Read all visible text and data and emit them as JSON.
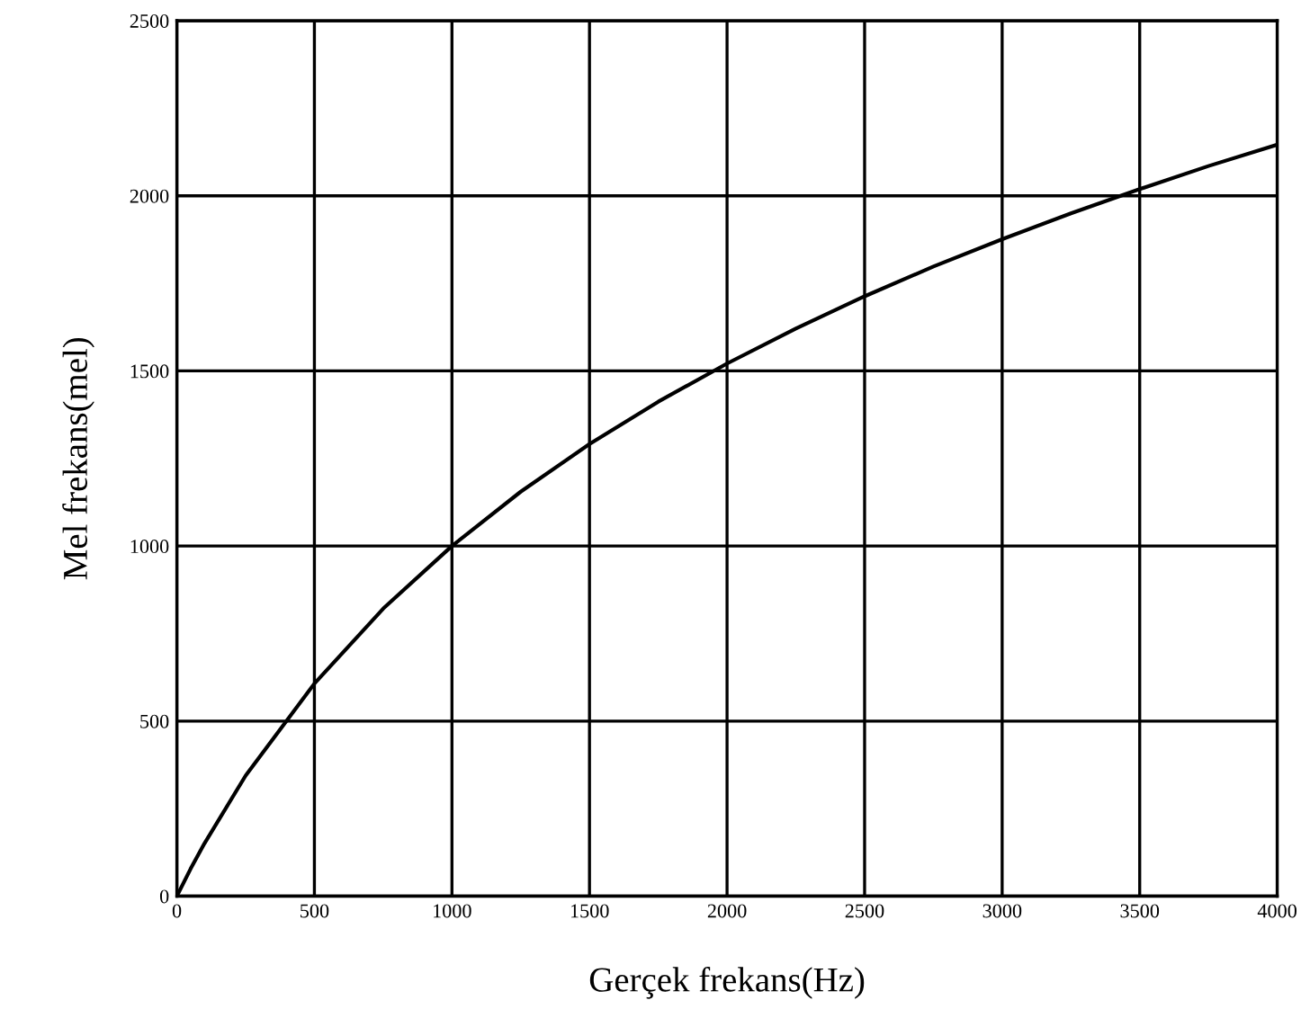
{
  "chart_data": {
    "type": "line",
    "xlabel": "Gerçek frekans(Hz)",
    "ylabel": "Mel frekans(mel)",
    "x": [
      0,
      50,
      100,
      250,
      500,
      750,
      1000,
      1250,
      1500,
      1750,
      2000,
      2250,
      2500,
      2750,
      3000,
      3250,
      3500,
      3750,
      4000
    ],
    "series": [
      {
        "color": "#000000",
        "values": [
          0,
          78,
          150,
          344,
          607,
          821,
          1000,
          1155,
          1291,
          1412,
          1521,
          1621,
          1713,
          1798,
          1876,
          1950,
          2019,
          2085,
          2146
        ]
      }
    ],
    "xlim": [
      0,
      4000
    ],
    "ylim": [
      0,
      2500
    ],
    "xticks": [
      0,
      500,
      1000,
      1500,
      2000,
      2500,
      3000,
      3500,
      4000
    ],
    "yticks": [
      0,
      500,
      1000,
      1500,
      2000,
      2500
    ],
    "grid": true,
    "legend": false,
    "marker": "none",
    "line_style": "solid"
  }
}
